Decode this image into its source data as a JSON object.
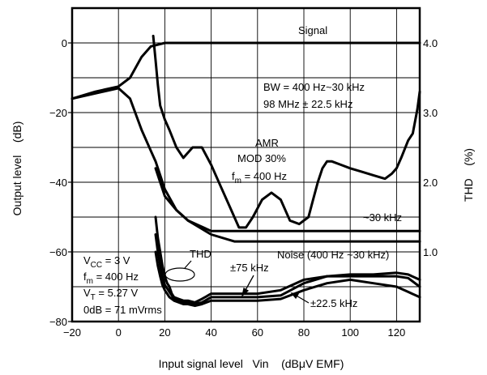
{
  "chart_data": {
    "type": "line",
    "xlabel": "Input signal level   Vin    (dBμV EMF)",
    "ylabel": "Output level    (dB)",
    "y2label": "THD    (%)",
    "xlim": [
      -20,
      130
    ],
    "ylim": [
      -80,
      10
    ],
    "y2lim": [
      0,
      4.5
    ],
    "xticks": [
      "−20",
      "0",
      "20",
      "40",
      "60",
      "80",
      "100",
      "120"
    ],
    "yticks": [
      "0",
      "−20",
      "−40",
      "−60",
      "−80"
    ],
    "y2ticks": [
      "4.0",
      "3.0",
      "2.0",
      "1.0"
    ],
    "grid": true,
    "series": [
      {
        "name": "Signal",
        "axis": "left",
        "x": [
          -20,
          -10,
          0,
          5,
          10,
          14,
          17,
          20,
          25,
          130
        ],
        "y": [
          -16,
          -14,
          -12.5,
          -10,
          -4,
          -1,
          -0.5,
          0,
          0,
          0
        ]
      },
      {
        "name": "AMR",
        "axis": "left",
        "x": [
          15,
          16,
          17,
          18,
          20,
          22,
          25,
          28,
          32,
          36,
          40,
          44,
          48,
          52,
          55,
          58,
          62,
          66,
          70,
          74,
          78,
          82,
          84,
          86,
          88,
          90,
          92,
          96,
          100,
          105,
          110,
          115,
          118,
          120,
          122,
          125,
          127,
          129,
          130
        ],
        "y": [
          2,
          -5,
          -12,
          -18,
          -22,
          -25,
          -30,
          -33,
          -30,
          -30,
          -35,
          -41,
          -47,
          -53,
          -53,
          -50,
          -45,
          -43,
          -45,
          -51,
          -52,
          -50,
          -45,
          -40,
          -36,
          -34,
          -34,
          -35,
          -36,
          -37,
          -38,
          -39,
          -37.5,
          -36,
          -33,
          -28,
          -26,
          -19,
          -14
        ]
      },
      {
        "name": "Noise (400 Hz ~30 kHz)",
        "axis": "left",
        "x": [
          -20,
          0,
          5,
          10,
          14,
          16,
          18,
          20,
          25,
          30,
          35,
          40,
          50,
          60,
          80,
          100,
          130
        ],
        "y": [
          -16,
          -13,
          -16,
          -25,
          -31,
          -34,
          -38,
          -42,
          -48,
          -51,
          -53,
          -55,
          -57,
          -57,
          -57,
          -57,
          -57
        ]
      },
      {
        "name": "~30 kHz",
        "axis": "left",
        "x": [
          16,
          18,
          20,
          25,
          30,
          35,
          40,
          50,
          60,
          80,
          100,
          130
        ],
        "y": [
          -36,
          -40,
          -44,
          -48,
          -51,
          -52.5,
          -54,
          -54,
          -54,
          -54,
          -54,
          -54
        ]
      },
      {
        "name": "±75 kHz",
        "axis": "left",
        "x": [
          16,
          17,
          18,
          19,
          20,
          21,
          22,
          23,
          24,
          26,
          28,
          30,
          33,
          36,
          40,
          50,
          60,
          70,
          80,
          90,
          100,
          110,
          120,
          125,
          130
        ],
        "y": [
          -50,
          -56,
          -60,
          -64,
          -67,
          -69,
          -70,
          -72,
          -73,
          -73.5,
          -74,
          -74,
          -74.5,
          -73.5,
          -72,
          -72,
          -72,
          -71,
          -68,
          -67,
          -67,
          -67,
          -67,
          -67.5,
          -70
        ]
      },
      {
        "name": "THD",
        "axis": "left",
        "x": [
          16,
          17,
          18,
          19,
          20,
          21,
          22,
          23,
          24,
          26,
          28,
          30,
          33,
          36,
          40,
          50,
          60,
          70,
          80,
          90,
          100,
          110,
          120,
          125,
          130
        ],
        "y": [
          -55,
          -60,
          -64,
          -67,
          -69.5,
          -70.5,
          -71.5,
          -72.5,
          -73.5,
          -74,
          -74.5,
          -74.5,
          -75,
          -74.5,
          -73,
          -73,
          -73,
          -72.5,
          -69,
          -67,
          -66.5,
          -66.5,
          -66,
          -66.5,
          -68
        ]
      },
      {
        "name": "±22.5 kHz",
        "axis": "left",
        "x": [
          16,
          17,
          18,
          19,
          20,
          21,
          22,
          23,
          24,
          26,
          28,
          30,
          33,
          36,
          40,
          50,
          60,
          70,
          80,
          90,
          100,
          110,
          120,
          125,
          130
        ],
        "y": [
          -60,
          -64,
          -67,
          -69.5,
          -71,
          -72,
          -73,
          -73.5,
          -74,
          -74.5,
          -75,
          -75,
          -75.5,
          -75,
          -74,
          -74,
          -74,
          -73.5,
          -71,
          -69,
          -68,
          -69,
          -70,
          -71.5,
          -73
        ]
      }
    ],
    "annotations": {
      "signal": "Signal",
      "bw1": "BW = 400 Hz~30 kHz",
      "bw2": "98 MHz ± 22.5 kHz",
      "amr1": "AMR",
      "amr2": "MOD 30%",
      "fm_mod": "f",
      "fm_mod_sub": "m",
      "fm_mod_rest": " = 400 Hz",
      "k30": "~30 kHz",
      "thd": "THD",
      "noise": "Noise (400 Hz ~30 kHz)",
      "k75": "±75 kHz",
      "k225": "±22.5 kHz",
      "vcc": "V",
      "vcc_sub": "CC",
      "vcc_rest": " = 3 V",
      "fm": "f",
      "fm_sub": "m",
      "fm_rest": " = 400 Hz",
      "vt": "V",
      "vt_sub": "T",
      "vt_rest": " = 5.27 V",
      "odb": "0dB = 71 mVrms"
    }
  }
}
